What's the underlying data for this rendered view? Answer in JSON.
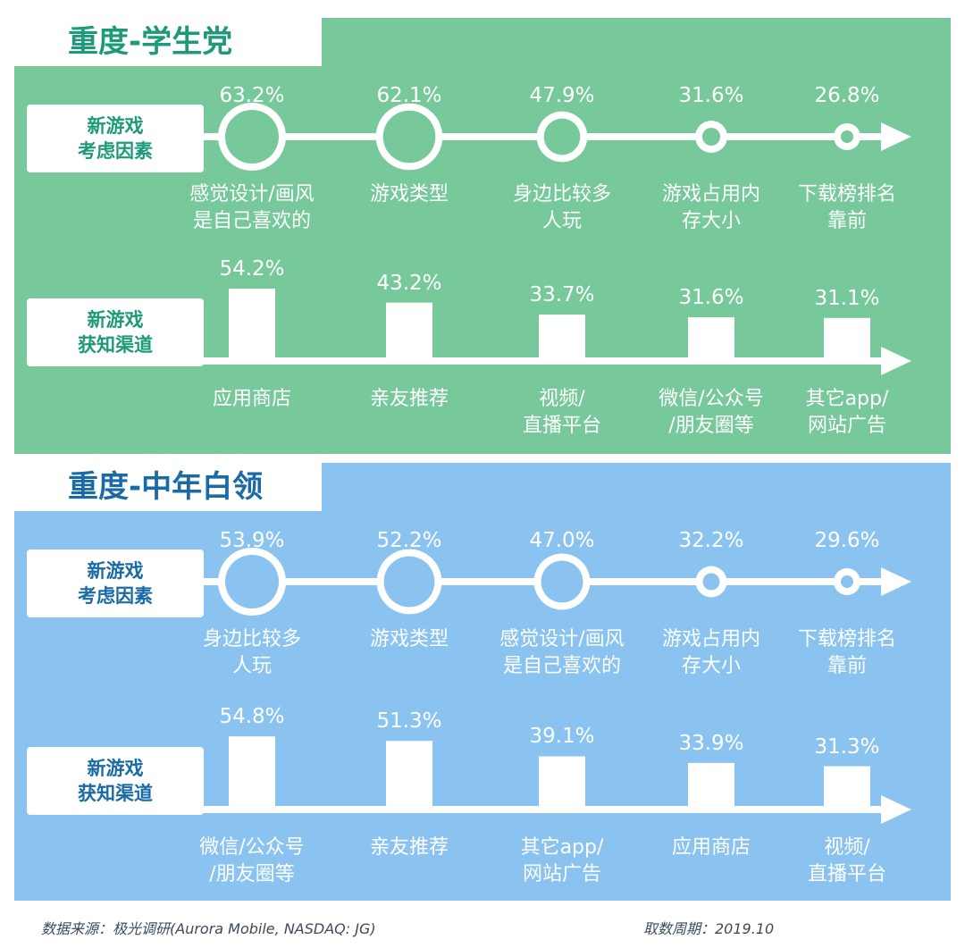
{
  "panels": [
    {
      "title": "重度-学生党",
      "consider_label": [
        "新游戏",
        "考虑因素"
      ],
      "channel_label": [
        "新游戏",
        "获知渠道"
      ]
    },
    {
      "title": "重度-中年白领",
      "consider_label": [
        "新游戏",
        "考虑因素"
      ],
      "channel_label": [
        "新游戏",
        "获知渠道"
      ]
    }
  ],
  "footer": {
    "source": "数据来源：极光调研(Aurora Mobile, NASDAQ: JG)",
    "period": "取数周期：2019.10"
  },
  "colors": {
    "green_panel": "#77c89a",
    "blue_panel": "#8ac3ef",
    "mark": "#ffffff"
  },
  "chart_data": [
    {
      "type": "bubble-timeline",
      "group": "重度-学生党",
      "row": "新游戏 考虑因素",
      "categories": [
        [
          "感觉设计/画风",
          "是自己喜欢的"
        ],
        [
          "游戏类型"
        ],
        [
          "身边比较多",
          "人玩"
        ],
        [
          "游戏占用内",
          "存大小"
        ],
        [
          "下载榜排名",
          "靠前"
        ]
      ],
      "labels": [
        "63.2%",
        "62.1%",
        "47.9%",
        "31.6%",
        "26.8%"
      ],
      "values": [
        63.2,
        62.1,
        47.9,
        31.6,
        26.8
      ]
    },
    {
      "type": "bar",
      "group": "重度-学生党",
      "row": "新游戏 获知渠道",
      "categories": [
        [
          "应用商店"
        ],
        [
          "亲友推荐"
        ],
        [
          "视频/",
          "直播平台"
        ],
        [
          "微信/公众号",
          "/朋友圈等"
        ],
        [
          "其它app/",
          "网站广告"
        ]
      ],
      "labels": [
        "54.2%",
        "43.2%",
        "33.7%",
        "31.6%",
        "31.1%"
      ],
      "values": [
        54.2,
        43.2,
        33.7,
        31.6,
        31.1
      ]
    },
    {
      "type": "bubble-timeline",
      "group": "重度-中年白领",
      "row": "新游戏 考虑因素",
      "categories": [
        [
          "身边比较多",
          "人玩"
        ],
        [
          "游戏类型"
        ],
        [
          "感觉设计/画风",
          "是自己喜欢的"
        ],
        [
          "游戏占用内",
          "存大小"
        ],
        [
          "下载榜排名",
          "靠前"
        ]
      ],
      "labels": [
        "53.9%",
        "52.2%",
        "47.0%",
        "32.2%",
        "29.6%"
      ],
      "values": [
        53.9,
        52.2,
        47.0,
        32.2,
        29.6
      ]
    },
    {
      "type": "bar",
      "group": "重度-中年白领",
      "row": "新游戏 获知渠道",
      "categories": [
        [
          "微信/公众号",
          "/朋友圈等"
        ],
        [
          "亲友推荐"
        ],
        [
          "其它app/",
          "网站广告"
        ],
        [
          "应用商店"
        ],
        [
          "视频/",
          "直播平台"
        ]
      ],
      "labels": [
        "54.8%",
        "51.3%",
        "39.1%",
        "33.9%",
        "31.3%"
      ],
      "values": [
        54.8,
        51.3,
        39.1,
        33.9,
        31.3
      ]
    }
  ]
}
